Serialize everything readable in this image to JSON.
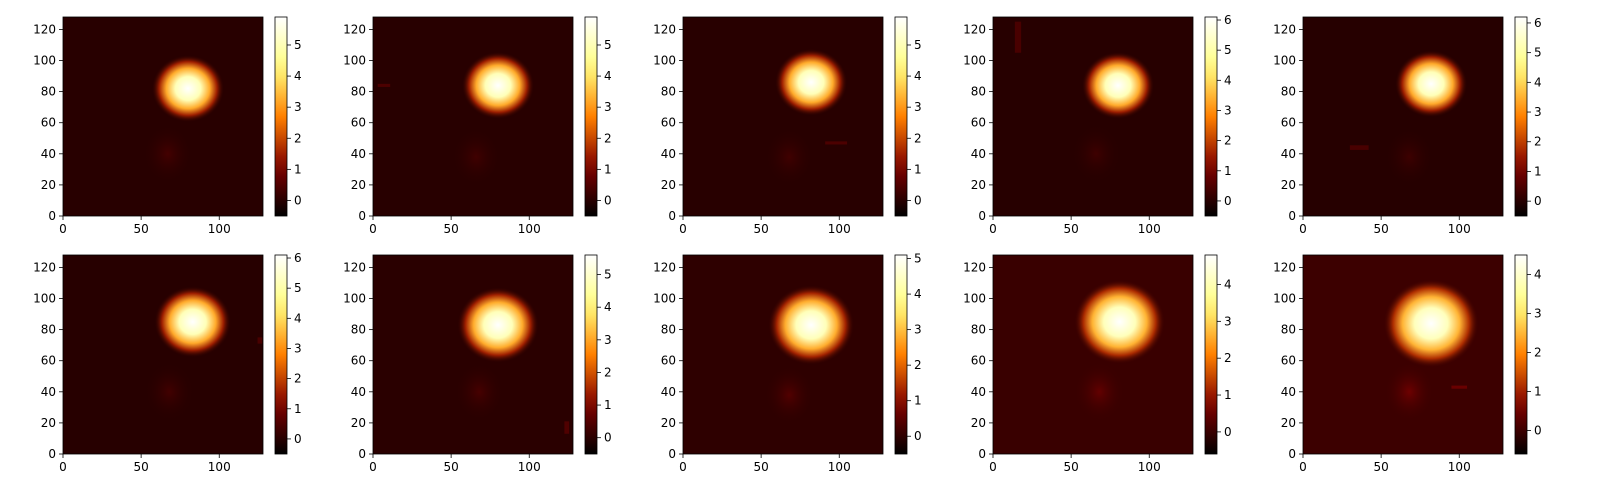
{
  "chart_data": [
    {
      "type": "heatmap",
      "colormap": "afmhot",
      "xlim": [
        0,
        128
      ],
      "ylim": [
        0,
        128
      ],
      "xticks": [
        0,
        50,
        100
      ],
      "yticks": [
        0,
        20,
        40,
        60,
        80,
        100,
        120
      ],
      "colorbar": {
        "vmin": -0.5,
        "vmax": 5.9,
        "ticks": [
          0,
          1,
          2,
          3,
          4,
          5
        ]
      },
      "bright_blob": {
        "x": 80,
        "y": 82,
        "radius": 16,
        "peak": 5.9
      },
      "faint_blob": {
        "x": 67,
        "y": 40,
        "radius": 16,
        "peak": 0.35
      },
      "artifacts": []
    },
    {
      "type": "heatmap",
      "colormap": "afmhot",
      "xlim": [
        0,
        128
      ],
      "ylim": [
        0,
        128
      ],
      "xticks": [
        0,
        50,
        100
      ],
      "yticks": [
        0,
        20,
        40,
        60,
        80,
        100,
        120
      ],
      "colorbar": {
        "vmin": -0.5,
        "vmax": 5.9,
        "ticks": [
          0,
          1,
          2,
          3,
          4,
          5
        ]
      },
      "bright_blob": {
        "x": 80,
        "y": 84,
        "radius": 16,
        "peak": 5.9
      },
      "faint_blob": {
        "x": 66,
        "y": 38,
        "radius": 16,
        "peak": 0.3
      },
      "artifacts": [
        {
          "x": 7,
          "y": 84,
          "w": 8,
          "h": 2
        }
      ]
    },
    {
      "type": "heatmap",
      "colormap": "afmhot",
      "xlim": [
        0,
        128
      ],
      "ylim": [
        0,
        128
      ],
      "xticks": [
        0,
        50,
        100
      ],
      "yticks": [
        0,
        20,
        40,
        60,
        80,
        100,
        120
      ],
      "colorbar": {
        "vmin": -0.5,
        "vmax": 5.9,
        "ticks": [
          0,
          1,
          2,
          3,
          4,
          5
        ]
      },
      "bright_blob": {
        "x": 82,
        "y": 86,
        "radius": 16,
        "peak": 5.9
      },
      "faint_blob": {
        "x": 68,
        "y": 38,
        "radius": 16,
        "peak": 0.3
      },
      "artifacts": [
        {
          "x": 98,
          "y": 47,
          "w": 14,
          "h": 2
        }
      ]
    },
    {
      "type": "heatmap",
      "colormap": "afmhot",
      "xlim": [
        0,
        128
      ],
      "ylim": [
        0,
        128
      ],
      "xticks": [
        0,
        50,
        100
      ],
      "yticks": [
        0,
        20,
        40,
        60,
        80,
        100,
        120
      ],
      "colorbar": {
        "vmin": -0.5,
        "vmax": 6.1,
        "ticks": [
          0,
          1,
          2,
          3,
          4,
          5,
          6
        ]
      },
      "bright_blob": {
        "x": 80,
        "y": 84,
        "radius": 16,
        "peak": 6.1
      },
      "faint_blob": {
        "x": 66,
        "y": 40,
        "radius": 16,
        "peak": 0.3
      },
      "artifacts": [
        {
          "x": 16,
          "y": 115,
          "w": 4,
          "h": 20
        }
      ]
    },
    {
      "type": "heatmap",
      "colormap": "afmhot",
      "xlim": [
        0,
        128
      ],
      "ylim": [
        0,
        128
      ],
      "xticks": [
        0,
        50,
        100
      ],
      "yticks": [
        0,
        20,
        40,
        60,
        80,
        100,
        120
      ],
      "colorbar": {
        "vmin": -0.5,
        "vmax": 6.2,
        "ticks": [
          0,
          1,
          2,
          3,
          4,
          5,
          6
        ]
      },
      "bright_blob": {
        "x": 82,
        "y": 85,
        "radius": 16,
        "peak": 6.2
      },
      "faint_blob": {
        "x": 68,
        "y": 38,
        "radius": 16,
        "peak": 0.3
      },
      "artifacts": [
        {
          "x": 36,
          "y": 44,
          "w": 12,
          "h": 3
        }
      ]
    },
    {
      "type": "heatmap",
      "colormap": "afmhot",
      "xlim": [
        0,
        128
      ],
      "ylim": [
        0,
        128
      ],
      "xticks": [
        0,
        50,
        100
      ],
      "yticks": [
        0,
        20,
        40,
        60,
        80,
        100,
        120
      ],
      "colorbar": {
        "vmin": -0.5,
        "vmax": 6.1,
        "ticks": [
          0,
          1,
          2,
          3,
          4,
          5,
          6
        ]
      },
      "bright_blob": {
        "x": 83,
        "y": 85,
        "radius": 17,
        "peak": 6.1
      },
      "faint_blob": {
        "x": 68,
        "y": 40,
        "radius": 16,
        "peak": 0.35
      },
      "artifacts": [
        {
          "x": 126,
          "y": 73,
          "w": 3,
          "h": 4
        }
      ]
    },
    {
      "type": "heatmap",
      "colormap": "afmhot",
      "xlim": [
        0,
        128
      ],
      "ylim": [
        0,
        128
      ],
      "xticks": [
        0,
        50,
        100
      ],
      "yticks": [
        0,
        20,
        40,
        60,
        80,
        100,
        120
      ],
      "colorbar": {
        "vmin": -0.5,
        "vmax": 5.6,
        "ticks": [
          0,
          1,
          2,
          3,
          4,
          5
        ]
      },
      "bright_blob": {
        "x": 80,
        "y": 83,
        "radius": 18,
        "peak": 5.6
      },
      "faint_blob": {
        "x": 68,
        "y": 40,
        "radius": 16,
        "peak": 0.35
      },
      "artifacts": [
        {
          "x": 124,
          "y": 17,
          "w": 3,
          "h": 8
        }
      ]
    },
    {
      "type": "heatmap",
      "colormap": "afmhot",
      "xlim": [
        0,
        128
      ],
      "ylim": [
        0,
        128
      ],
      "xticks": [
        0,
        50,
        100
      ],
      "yticks": [
        0,
        20,
        40,
        60,
        80,
        100,
        120
      ],
      "colorbar": {
        "vmin": -0.5,
        "vmax": 5.1,
        "ticks": [
          0,
          1,
          2,
          3,
          4,
          5
        ]
      },
      "bright_blob": {
        "x": 82,
        "y": 83,
        "radius": 19,
        "peak": 5.1
      },
      "faint_blob": {
        "x": 68,
        "y": 38,
        "radius": 16,
        "peak": 0.4
      },
      "artifacts": []
    },
    {
      "type": "heatmap",
      "colormap": "afmhot",
      "xlim": [
        0,
        128
      ],
      "ylim": [
        0,
        128
      ],
      "xticks": [
        0,
        50,
        100
      ],
      "yticks": [
        0,
        20,
        40,
        60,
        80,
        100,
        120
      ],
      "colorbar": {
        "vmin": -0.6,
        "vmax": 4.8,
        "ticks": [
          0,
          1,
          2,
          3,
          4
        ]
      },
      "bright_blob": {
        "x": 81,
        "y": 85,
        "radius": 20,
        "peak": 4.8
      },
      "faint_blob": {
        "x": 68,
        "y": 40,
        "radius": 16,
        "peak": 0.45
      },
      "artifacts": []
    },
    {
      "type": "heatmap",
      "colormap": "afmhot",
      "xlim": [
        0,
        128
      ],
      "ylim": [
        0,
        128
      ],
      "xticks": [
        0,
        50,
        100
      ],
      "yticks": [
        0,
        20,
        40,
        60,
        80,
        100,
        120
      ],
      "colorbar": {
        "vmin": -0.6,
        "vmax": 4.5,
        "ticks": [
          0,
          1,
          2,
          3,
          4
        ]
      },
      "bright_blob": {
        "x": 82,
        "y": 84,
        "radius": 21,
        "peak": 4.5
      },
      "faint_blob": {
        "x": 68,
        "y": 40,
        "radius": 16,
        "peak": 0.5
      },
      "artifacts": [
        {
          "x": 100,
          "y": 43,
          "w": 10,
          "h": 2
        }
      ]
    }
  ]
}
